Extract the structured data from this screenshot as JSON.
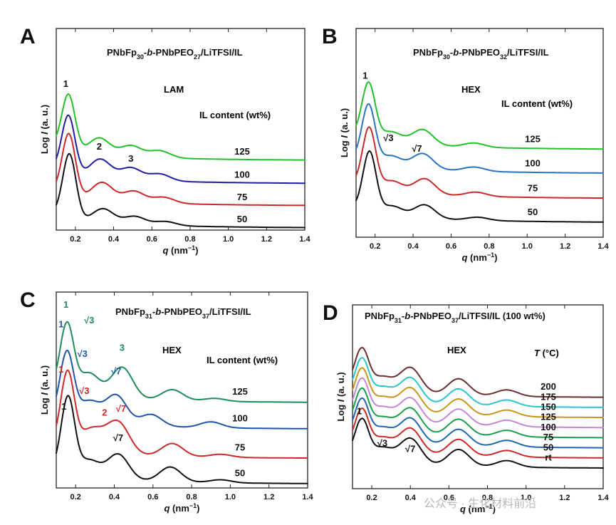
{
  "chart_data": [
    {
      "panel": "A",
      "type": "line",
      "title": "PNbFp30-b-PNbPEO27/LiTFSI/IL",
      "title_parts": [
        {
          "t": "PNbFp",
          "sub": false
        },
        {
          "t": "30",
          "sub": true
        },
        {
          "t": "-",
          "sub": false
        },
        {
          "t": "b",
          "sub": false,
          "italic": true
        },
        {
          "t": "-PNbPEO",
          "sub": false
        },
        {
          "t": "27",
          "sub": true
        },
        {
          "t": "/LiTFSI/IL",
          "sub": false
        }
      ],
      "xlabel": "q (nm⁻¹)",
      "ylabel": "Log I (a. u.)",
      "xlim": [
        0.1,
        1.4
      ],
      "ylim": [
        0,
        10
      ],
      "xticks": [
        "0.2",
        "0.4",
        "0.6",
        "0.8",
        "1.0",
        "1.2",
        "1.4"
      ],
      "morphology": "LAM",
      "legend_title": "IL content (wt%)",
      "series": [
        {
          "name": "125",
          "color": "#22c22a",
          "offset": 3.45,
          "peaks": [
            {
              "q": 0.163,
              "h": 2.9
            },
            {
              "q": 0.325,
              "h": 0.85
            },
            {
              "q": 0.49,
              "h": 0.55
            },
            {
              "q": 0.64,
              "h": 0.35
            }
          ]
        },
        {
          "name": "100",
          "color": "#1f1fa3",
          "offset": 2.3,
          "peaks": [
            {
              "q": 0.163,
              "h": 3.0
            },
            {
              "q": 0.33,
              "h": 0.95
            },
            {
              "q": 0.49,
              "h": 0.6
            },
            {
              "q": 0.64,
              "h": 0.35
            }
          ]
        },
        {
          "name": "75",
          "color": "#cc2929",
          "offset": 1.2,
          "peaks": [
            {
              "q": 0.165,
              "h": 3.2
            },
            {
              "q": 0.34,
              "h": 0.9
            },
            {
              "q": 0.505,
              "h": 0.55
            },
            {
              "q": 0.66,
              "h": 0.3
            }
          ]
        },
        {
          "name": "50",
          "color": "#111111",
          "offset": 0.1,
          "peaks": [
            {
              "q": 0.168,
              "h": 3.3
            },
            {
              "q": 0.345,
              "h": 0.7
            },
            {
              "q": 0.51,
              "h": 0.4
            },
            {
              "q": 0.67,
              "h": 0.2
            }
          ]
        }
      ],
      "peak_labels": [
        {
          "text": "1",
          "q": 0.15,
          "y": 7.1,
          "color": "#111111"
        },
        {
          "text": "2",
          "q": 0.325,
          "y": 4.0,
          "color": "#111111"
        },
        {
          "text": "3",
          "q": 0.49,
          "y": 3.4,
          "color": "#111111"
        }
      ]
    },
    {
      "panel": "B",
      "type": "line",
      "title": "PNbFp30-b-PNbPEO32/LiTFSI/IL",
      "title_parts": [
        {
          "t": "PNbFp",
          "sub": false
        },
        {
          "t": "30",
          "sub": true
        },
        {
          "t": "-",
          "sub": false
        },
        {
          "t": "b",
          "sub": false,
          "italic": true
        },
        {
          "t": "-PNbPEO",
          "sub": false
        },
        {
          "t": "32",
          "sub": true
        },
        {
          "t": "/LiTFSI/IL",
          "sub": false
        }
      ],
      "xlabel": "q (nm⁻¹)",
      "ylabel": "Log I (a. u.)",
      "xlim": [
        0.1,
        1.4
      ],
      "ylim": [
        0,
        10
      ],
      "xticks": [
        "0.2",
        "0.4",
        "0.6",
        "0.8",
        "1.0",
        "1.2",
        "1.4"
      ],
      "morphology": "HEX",
      "legend_title": "IL content (wt%)",
      "series": [
        {
          "name": "125",
          "color": "#22c22a",
          "offset": 4.2,
          "peaks": [
            {
              "q": 0.165,
              "h": 2.8
            },
            {
              "q": 0.285,
              "h": 0.55
            },
            {
              "q": 0.45,
              "h": 0.75
            },
            {
              "q": 0.72,
              "h": 0.2
            }
          ]
        },
        {
          "name": "100",
          "color": "#2a73c4",
          "offset": 3.05,
          "peaks": [
            {
              "q": 0.165,
              "h": 2.9
            },
            {
              "q": 0.285,
              "h": 0.55
            },
            {
              "q": 0.45,
              "h": 0.75
            },
            {
              "q": 0.72,
              "h": 0.2
            }
          ]
        },
        {
          "name": "75",
          "color": "#cc2929",
          "offset": 1.85,
          "peaks": [
            {
              "q": 0.168,
              "h": 3.0
            },
            {
              "q": 0.29,
              "h": 0.55
            },
            {
              "q": 0.46,
              "h": 0.75
            },
            {
              "q": 0.73,
              "h": 0.2
            }
          ]
        },
        {
          "name": "50",
          "color": "#111111",
          "offset": 0.7,
          "peaks": [
            {
              "q": 0.17,
              "h": 3.0
            },
            {
              "q": 0.29,
              "h": 0.5
            },
            {
              "q": 0.46,
              "h": 0.65
            },
            {
              "q": 0.74,
              "h": 0.15
            }
          ]
        }
      ],
      "peak_labels": [
        {
          "text": "1",
          "q": 0.148,
          "y": 7.6,
          "color": "#111111"
        },
        {
          "text": "√3",
          "q": 0.27,
          "y": 4.6,
          "color": "#111111"
        },
        {
          "text": "√7",
          "q": 0.42,
          "y": 4.1,
          "color": "#111111"
        }
      ]
    },
    {
      "panel": "C",
      "type": "line",
      "title": "PNbFp31-b-PNbPEO37/LiTFSI/IL",
      "title_parts": [
        {
          "t": "PNbFp",
          "sub": false
        },
        {
          "t": "31",
          "sub": true
        },
        {
          "t": "-",
          "sub": false
        },
        {
          "t": "b",
          "sub": false,
          "italic": true
        },
        {
          "t": "-PNbPEO",
          "sub": false
        },
        {
          "t": "37",
          "sub": true
        },
        {
          "t": "/LiTFSI/IL",
          "sub": false
        }
      ],
      "xlabel": "q (nm⁻¹)",
      "ylabel": "Log I (a. u.)",
      "xlim": [
        0.1,
        1.4
      ],
      "ylim": [
        0,
        10
      ],
      "xticks": [
        "0.2",
        "0.4",
        "0.6",
        "0.8",
        "1.0",
        "1.2",
        "1.4"
      ],
      "morphology": "HEX",
      "legend_title": "IL content (wt%)",
      "series": [
        {
          "name": "125",
          "color": "#1f8c5a",
          "offset": 4.35,
          "peaks": [
            {
              "q": 0.155,
              "h": 3.6
            },
            {
              "q": 0.27,
              "h": 1.2
            },
            {
              "q": 0.44,
              "h": 1.6
            },
            {
              "q": 0.7,
              "h": 0.55
            },
            {
              "q": 0.92,
              "h": 0.15
            }
          ]
        },
        {
          "name": "100",
          "color": "#1f55a8",
          "offset": 3.0,
          "peaks": [
            {
              "q": 0.155,
              "h": 3.5
            },
            {
              "q": 0.27,
              "h": 1.1
            },
            {
              "q": 0.41,
              "h": 1.5
            },
            {
              "q": 0.59,
              "h": 0.6
            },
            {
              "q": 0.9,
              "h": 0.3
            }
          ]
        },
        {
          "name": "75",
          "color": "#cc2929",
          "offset": 1.5,
          "peaks": [
            {
              "q": 0.158,
              "h": 4.0
            },
            {
              "q": 0.275,
              "h": 1.1
            },
            {
              "q": 0.37,
              "h": 0.6
            },
            {
              "q": 0.43,
              "h": 1.3
            },
            {
              "q": 0.7,
              "h": 0.65
            },
            {
              "q": 0.95,
              "h": 0.15
            }
          ]
        },
        {
          "name": "50",
          "color": "#111111",
          "offset": 0.2,
          "peaks": [
            {
              "q": 0.16,
              "h": 4.0
            },
            {
              "q": 0.27,
              "h": 0.9
            },
            {
              "q": 0.42,
              "h": 1.3
            },
            {
              "q": 0.69,
              "h": 0.75
            },
            {
              "q": 0.95,
              "h": 0.15
            }
          ]
        }
      ],
      "peak_labels": [
        {
          "text": "1",
          "q": 0.15,
          "y": 9.2,
          "color": "#1f8c5a"
        },
        {
          "text": "√3",
          "q": 0.27,
          "y": 8.4,
          "color": "#1f8c5a"
        },
        {
          "text": "3",
          "q": 0.44,
          "y": 7.0,
          "color": "#1f8c5a"
        },
        {
          "text": "1",
          "q": 0.125,
          "y": 8.2,
          "color": "#1f55a8"
        },
        {
          "text": "√3",
          "q": 0.235,
          "y": 6.7,
          "color": "#1f55a8"
        },
        {
          "text": "√7",
          "q": 0.41,
          "y": 5.8,
          "color": "#1f55a8"
        },
        {
          "text": "1",
          "q": 0.125,
          "y": 5.9,
          "color": "#cc2929"
        },
        {
          "text": "√3",
          "q": 0.245,
          "y": 4.8,
          "color": "#cc2929"
        },
        {
          "text": "2",
          "q": 0.35,
          "y": 3.7,
          "color": "#cc2929"
        },
        {
          "text": "√7",
          "q": 0.435,
          "y": 3.9,
          "color": "#cc2929"
        },
        {
          "text": "1",
          "q": 0.14,
          "y": 4.0,
          "color": "#111111"
        },
        {
          "text": "√7",
          "q": 0.42,
          "y": 2.4,
          "color": "#111111"
        }
      ]
    },
    {
      "panel": "D",
      "type": "line",
      "title": "PNbFp31-b-PNbPEO37/LiTFSI/IL (100 wt%)",
      "title_parts": [
        {
          "t": "PNbFp",
          "sub": false
        },
        {
          "t": "31",
          "sub": true
        },
        {
          "t": "-",
          "sub": false
        },
        {
          "t": "b",
          "sub": false,
          "italic": true
        },
        {
          "t": "-PNbPEO",
          "sub": false
        },
        {
          "t": "37",
          "sub": true
        },
        {
          "t": "/LiTFSI/IL (100 wt%)",
          "sub": false
        }
      ],
      "xlabel": "q (nm⁻¹)",
      "ylabel": "Log I (a. u.)",
      "xlim": [
        0.1,
        1.4
      ],
      "ylim": [
        0,
        10
      ],
      "xticks": [
        "0.2",
        "0.4",
        "0.6",
        "0.8",
        "1.0",
        "1.2",
        "1.4"
      ],
      "morphology": "HEX",
      "legend_title": "T (°C)",
      "series": [
        {
          "name": "200",
          "color": "#6b2f2f",
          "offset": 4.95
        },
        {
          "name": "175",
          "color": "#28c6cf",
          "offset": 4.4
        },
        {
          "name": "150",
          "color": "#c9961a",
          "offset": 3.85
        },
        {
          "name": "125",
          "color": "#c585d8",
          "offset": 3.3
        },
        {
          "name": "100",
          "color": "#18a04a",
          "offset": 2.75
        },
        {
          "name": "75",
          "color": "#1f67b5",
          "offset": 2.2
        },
        {
          "name": "50",
          "color": "#cc2929",
          "offset": 1.65
        },
        {
          "name": "rt",
          "color": "#111111",
          "offset": 1.1
        }
      ],
      "series_peaks": [
        {
          "q": 0.148,
          "h": 2.2
        },
        {
          "q": 0.255,
          "h": 0.8
        },
        {
          "q": 0.4,
          "h": 1.4
        },
        {
          "q": 0.65,
          "h": 0.9
        },
        {
          "q": 0.9,
          "h": 0.35
        }
      ],
      "peak_labels": [
        {
          "text": "1",
          "q": 0.135,
          "y": 4.05,
          "color": "#111111"
        },
        {
          "text": "√3",
          "q": 0.255,
          "y": 2.3,
          "color": "#111111"
        },
        {
          "text": "√7",
          "q": 0.4,
          "y": 2.0,
          "color": "#111111"
        }
      ]
    }
  ],
  "watermark": "公众号 · 生化材料前沿"
}
